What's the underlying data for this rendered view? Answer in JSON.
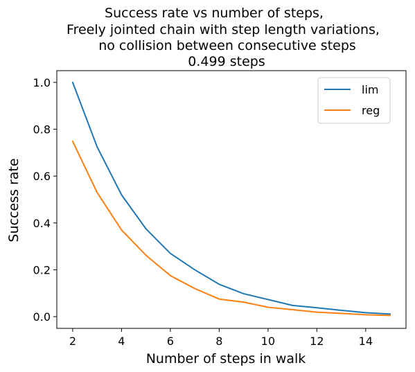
{
  "chart_data": {
    "type": "line",
    "title_lines": [
      "Success rate vs number of steps,",
      "Freely jointed chain with step length variations,",
      "no collision between consecutive steps",
      "0.499 steps"
    ],
    "xlabel": "Number of steps in walk",
    "ylabel": "Success rate",
    "xlim": [
      1.35,
      15.65
    ],
    "ylim": [
      -0.05,
      1.05
    ],
    "xticks": [
      2,
      4,
      6,
      8,
      10,
      12,
      14
    ],
    "yticks": [
      0.0,
      0.2,
      0.4,
      0.6,
      0.8,
      1.0
    ],
    "ytick_labels": [
      "0.0",
      "0.2",
      "0.4",
      "0.6",
      "0.8",
      "1.0"
    ],
    "grid": false,
    "legend_position": "top-right",
    "x": [
      2,
      3,
      4,
      5,
      6,
      7,
      8,
      9,
      10,
      11,
      12,
      13,
      14,
      15
    ],
    "series": [
      {
        "name": "lim",
        "color": "#1f77b4",
        "values": [
          1.0,
          0.725,
          0.52,
          0.375,
          0.27,
          0.2,
          0.138,
          0.098,
          0.073,
          0.048,
          0.038,
          0.027,
          0.017,
          0.011
        ]
      },
      {
        "name": "reg",
        "color": "#ff7f0e",
        "values": [
          0.748,
          0.53,
          0.37,
          0.262,
          0.175,
          0.12,
          0.075,
          0.062,
          0.04,
          0.03,
          0.019,
          0.014,
          0.008,
          0.005
        ]
      }
    ]
  }
}
